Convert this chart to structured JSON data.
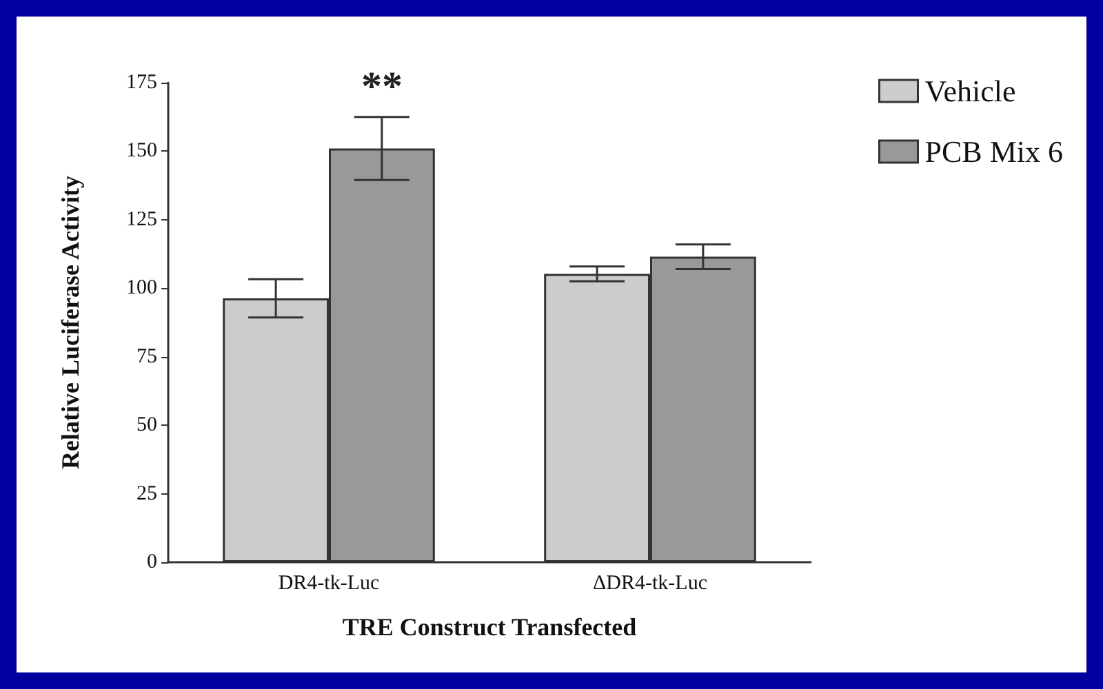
{
  "chart_data": {
    "type": "bar",
    "xlabel": "TRE Construct Transfected",
    "ylabel": "Relative Luciferase Activity",
    "categories": [
      "DR4-tk-Luc",
      "ΔDR4-tk-Luc"
    ],
    "series": [
      {
        "name": "Vehicle",
        "color": "#cccccc",
        "values": [
          96.3,
          105.2
        ],
        "errors": [
          7,
          2.7
        ]
      },
      {
        "name": "PCB Mix 6",
        "color": "#999999",
        "values": [
          151,
          111.5
        ],
        "errors": [
          11.5,
          4.5
        ]
      }
    ],
    "ylim": [
      0,
      175
    ],
    "yticks": [
      0,
      25,
      50,
      75,
      100,
      125,
      150,
      175
    ],
    "grid": false,
    "legend": "top right",
    "annotations": [
      "**"
    ]
  }
}
